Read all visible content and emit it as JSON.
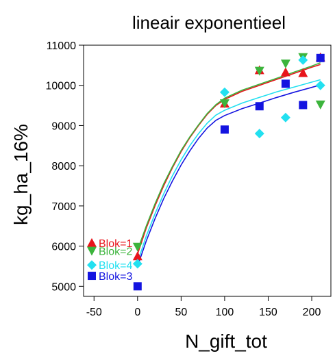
{
  "chart_data": {
    "type": "scatter",
    "title": "lineair exponentieel",
    "xlabel": "N_gift_tot",
    "ylabel": "kg_ha_16%",
    "xlim": [
      -62,
      222
    ],
    "ylim": [
      4750,
      11000
    ],
    "xticks": [
      -50,
      0,
      50,
      100,
      150,
      200
    ],
    "yticks": [
      5000,
      6000,
      7000,
      8000,
      9000,
      10000,
      11000
    ],
    "grid": false,
    "legend_placement": "left",
    "series": [
      {
        "name": "Blok=1",
        "color": "#e8141b",
        "marker": "triangle-up",
        "points": [
          [
            0,
            5750
          ],
          [
            100,
            9550
          ],
          [
            140,
            10380
          ],
          [
            170,
            10330
          ],
          [
            190,
            10310
          ],
          [
            210,
            10700
          ]
        ],
        "fit": [
          [
            0,
            5800
          ],
          [
            10,
            6450
          ],
          [
            20,
            7000
          ],
          [
            30,
            7500
          ],
          [
            40,
            7950
          ],
          [
            50,
            8350
          ],
          [
            60,
            8700
          ],
          [
            70,
            9000
          ],
          [
            80,
            9280
          ],
          [
            90,
            9500
          ],
          [
            100,
            9650
          ],
          [
            120,
            9850
          ],
          [
            140,
            10000
          ],
          [
            160,
            10150
          ],
          [
            180,
            10300
          ],
          [
            200,
            10450
          ],
          [
            210,
            10520
          ]
        ]
      },
      {
        "name": "Blok=2",
        "color": "#3cb43c",
        "marker": "triangle-down",
        "points": [
          [
            0,
            5980
          ],
          [
            100,
            9550
          ],
          [
            140,
            10360
          ],
          [
            170,
            10540
          ],
          [
            190,
            10700
          ],
          [
            210,
            9520
          ]
        ],
        "fit": [
          [
            0,
            5900
          ],
          [
            10,
            6500
          ],
          [
            20,
            7050
          ],
          [
            30,
            7550
          ],
          [
            40,
            7980
          ],
          [
            50,
            8380
          ],
          [
            60,
            8720
          ],
          [
            70,
            9020
          ],
          [
            80,
            9300
          ],
          [
            90,
            9520
          ],
          [
            100,
            9680
          ],
          [
            120,
            9880
          ],
          [
            140,
            10030
          ],
          [
            160,
            10180
          ],
          [
            180,
            10330
          ],
          [
            200,
            10480
          ],
          [
            210,
            10560
          ]
        ]
      },
      {
        "name": "Blok=3",
        "color": "#1414e0",
        "marker": "square",
        "points": [
          [
            0,
            5000
          ],
          [
            100,
            8900
          ],
          [
            140,
            9480
          ],
          [
            170,
            10040
          ],
          [
            190,
            9510
          ],
          [
            210,
            10680
          ]
        ],
        "fit": [
          [
            0,
            5500
          ],
          [
            10,
            6130
          ],
          [
            20,
            6680
          ],
          [
            30,
            7180
          ],
          [
            40,
            7620
          ],
          [
            50,
            8020
          ],
          [
            60,
            8370
          ],
          [
            70,
            8680
          ],
          [
            80,
            8940
          ],
          [
            90,
            9130
          ],
          [
            100,
            9250
          ],
          [
            120,
            9420
          ],
          [
            140,
            9560
          ],
          [
            160,
            9700
          ],
          [
            180,
            9830
          ],
          [
            200,
            9950
          ],
          [
            210,
            10010
          ]
        ]
      },
      {
        "name": "Blok=4",
        "color": "#22e0f0",
        "marker": "diamond",
        "points": [
          [
            0,
            5560
          ],
          [
            100,
            9830
          ],
          [
            140,
            8800
          ],
          [
            170,
            9200
          ],
          [
            190,
            10630
          ],
          [
            210,
            10000
          ]
        ],
        "fit": [
          [
            0,
            5600
          ],
          [
            10,
            6250
          ],
          [
            20,
            6800
          ],
          [
            30,
            7300
          ],
          [
            40,
            7750
          ],
          [
            50,
            8150
          ],
          [
            60,
            8500
          ],
          [
            70,
            8800
          ],
          [
            80,
            9060
          ],
          [
            90,
            9260
          ],
          [
            100,
            9380
          ],
          [
            120,
            9560
          ],
          [
            140,
            9700
          ],
          [
            160,
            9840
          ],
          [
            180,
            9960
          ],
          [
            200,
            10080
          ],
          [
            210,
            10140
          ]
        ]
      }
    ],
    "legend_entries": [
      {
        "label": "Blok=1",
        "color": "#e8141b",
        "marker": "triangle-up",
        "y": 6080
      },
      {
        "label": "Blok=2",
        "color": "#3cb43c",
        "marker": "triangle-down",
        "y": 5880
      },
      {
        "label": "Blok=4",
        "color": "#22e0f0",
        "marker": "diamond",
        "y": 5530
      },
      {
        "label": "Blok=3",
        "color": "#1414e0",
        "marker": "square",
        "y": 5260
      }
    ]
  }
}
